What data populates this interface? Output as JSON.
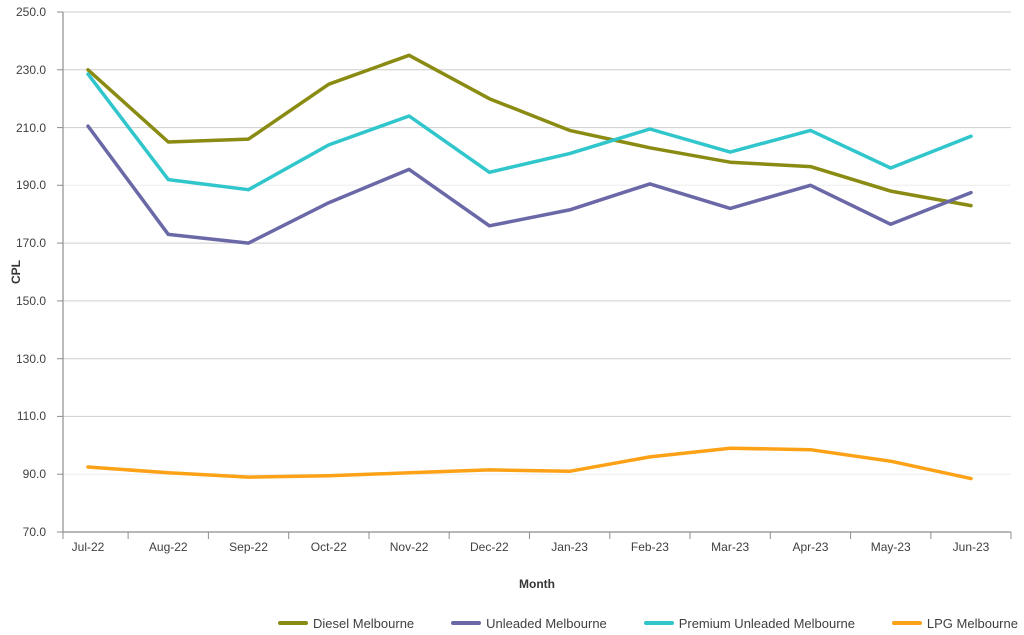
{
  "chart": {
    "y_axis_title": "CPL",
    "x_axis_title": "Month"
  },
  "chart_data": {
    "type": "line",
    "title": "",
    "xlabel": "Month",
    "ylabel": "CPL",
    "categories": [
      "Jul-22",
      "Aug-22",
      "Sep-22",
      "Oct-22",
      "Nov-22",
      "Dec-22",
      "Jan-23",
      "Feb-23",
      "Mar-23",
      "Apr-23",
      "May-23",
      "Jun-23"
    ],
    "series": [
      {
        "name": "Diesel Melbourne",
        "color": "#8A8B12",
        "values": [
          230.0,
          205.0,
          206.0,
          225.0,
          235.0,
          220.0,
          209.0,
          203.0,
          198.0,
          196.5,
          188.0,
          183.0
        ]
      },
      {
        "name": "Unleaded Melbourne",
        "color": "#6A68A6",
        "values": [
          210.5,
          173.0,
          170.0,
          184.0,
          195.5,
          176.0,
          181.5,
          190.5,
          182.0,
          190.0,
          176.5,
          187.5
        ]
      },
      {
        "name": "Premium Unleaded Melbourne",
        "color": "#30C6CB",
        "values": [
          228.5,
          192.0,
          188.5,
          204.0,
          214.0,
          194.5,
          201.0,
          209.5,
          201.5,
          209.0,
          196.0,
          207.0
        ]
      },
      {
        "name": "LPG Melbourne",
        "color": "#FDA117",
        "values": [
          92.5,
          90.5,
          89.0,
          89.5,
          90.5,
          91.5,
          91.0,
          96.0,
          99.0,
          98.5,
          94.5,
          88.5
        ]
      }
    ],
    "ylim": [
      70,
      250
    ],
    "ytick_step": 20,
    "y_tick_labels": [
      "70.0",
      "90.0",
      "110.0",
      "130.0",
      "150.0",
      "170.0",
      "190.0",
      "210.0",
      "230.0",
      "250.0"
    ],
    "grid": true,
    "legend_position": "bottom",
    "colors": {
      "grid": "#CDCDCD",
      "grid_faint": "#EDEDED",
      "axis": "#8E8E8E",
      "text": "#3F3F3F"
    }
  }
}
